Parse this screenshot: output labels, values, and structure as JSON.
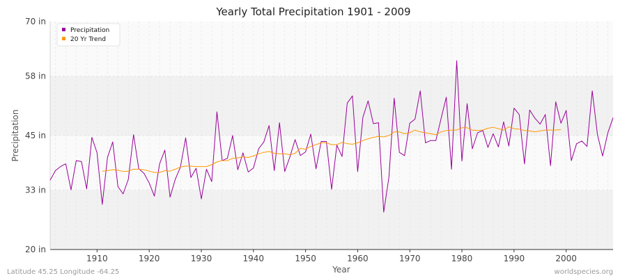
{
  "chart_data": {
    "type": "line",
    "title": "Yearly Total Precipitation 1901 - 2009",
    "xlabel": "Year",
    "ylabel": "Precipitation",
    "xlim": [
      1901,
      2009
    ],
    "ylim": [
      20,
      70
    ],
    "y_ticks": [
      {
        "value": 20,
        "label": "20 in"
      },
      {
        "value": 33,
        "label": "33 in"
      },
      {
        "value": 45,
        "label": "45 in"
      },
      {
        "value": 58,
        "label": "58 in"
      },
      {
        "value": 70,
        "label": "70 in"
      }
    ],
    "x_ticks": [
      1910,
      1920,
      1930,
      1940,
      1950,
      1960,
      1970,
      1980,
      1990,
      2000
    ],
    "legend": {
      "position": "top-left"
    },
    "series": [
      {
        "name": "Precipitation",
        "color": "#990099",
        "x": [
          1901,
          1902,
          1903,
          1904,
          1905,
          1906,
          1907,
          1908,
          1909,
          1910,
          1911,
          1912,
          1913,
          1914,
          1915,
          1916,
          1917,
          1918,
          1919,
          1920,
          1921,
          1922,
          1923,
          1924,
          1925,
          1926,
          1927,
          1928,
          1929,
          1930,
          1931,
          1932,
          1933,
          1934,
          1935,
          1936,
          1937,
          1938,
          1939,
          1940,
          1941,
          1942,
          1943,
          1944,
          1945,
          1946,
          1947,
          1948,
          1949,
          1950,
          1951,
          1952,
          1953,
          1954,
          1955,
          1956,
          1957,
          1958,
          1959,
          1960,
          1961,
          1962,
          1963,
          1964,
          1965,
          1966,
          1967,
          1968,
          1969,
          1970,
          1971,
          1972,
          1973,
          1974,
          1975,
          1976,
          1977,
          1978,
          1979,
          1980,
          1981,
          1982,
          1983,
          1984,
          1985,
          1986,
          1987,
          1988,
          1989,
          1990,
          1991,
          1992,
          1993,
          1994,
          1995,
          1996,
          1997,
          1998,
          1999,
          2000,
          2001,
          2002,
          2003,
          2004,
          2005,
          2006,
          2007,
          2008,
          2009
        ],
        "values": [
          35.2,
          37.3,
          38.2,
          38.8,
          33.1,
          39.5,
          39.3,
          33.3,
          44.6,
          41.2,
          29.9,
          40.2,
          43.6,
          33.8,
          32.2,
          35.4,
          45.2,
          37.7,
          36.7,
          34.6,
          31.7,
          38.8,
          41.8,
          31.5,
          35.4,
          38.1,
          44.5,
          35.8,
          37.8,
          31.1,
          37.6,
          34.9,
          50.2,
          39.5,
          40.0,
          45.0,
          37.5,
          41.2,
          37.0,
          37.9,
          42.1,
          43.6,
          47.2,
          37.3,
          47.8,
          37.1,
          40.3,
          44.1,
          40.6,
          41.4,
          45.3,
          37.7,
          43.7,
          43.7,
          33.2,
          42.9,
          40.4,
          52.1,
          53.7,
          37.1,
          49.0,
          52.6,
          47.6,
          47.8,
          28.2,
          35.9,
          53.2,
          41.3,
          40.6,
          47.7,
          48.6,
          54.8,
          43.4,
          43.9,
          43.9,
          48.7,
          53.4,
          37.6,
          61.4,
          39.4,
          52.0,
          42.1,
          45.6,
          46.1,
          42.4,
          45.4,
          42.5,
          48.0,
          42.7,
          51.0,
          49.6,
          38.8,
          50.6,
          48.8,
          47.5,
          49.6,
          38.4,
          52.4,
          47.7,
          50.5,
          39.5,
          43.2,
          43.8,
          42.6,
          54.8,
          45.2,
          40.5,
          45.6,
          48.9
        ]
      },
      {
        "name": "20 Yr Trend",
        "color": "#ff9900",
        "x": [
          1911,
          1912,
          1913,
          1914,
          1915,
          1916,
          1917,
          1918,
          1919,
          1920,
          1921,
          1922,
          1923,
          1924,
          1925,
          1926,
          1927,
          1928,
          1929,
          1930,
          1931,
          1932,
          1933,
          1934,
          1935,
          1936,
          1937,
          1938,
          1939,
          1940,
          1941,
          1942,
          1943,
          1944,
          1945,
          1946,
          1947,
          1948,
          1949,
          1950,
          1951,
          1952,
          1953,
          1954,
          1955,
          1956,
          1957,
          1958,
          1959,
          1960,
          1961,
          1962,
          1963,
          1964,
          1965,
          1966,
          1967,
          1968,
          1969,
          1970,
          1971,
          1972,
          1973,
          1974,
          1975,
          1976,
          1977,
          1978,
          1979,
          1980,
          1981,
          1982,
          1983,
          1984,
          1985,
          1986,
          1987,
          1988,
          1989,
          1990,
          1991,
          1992,
          1993,
          1994,
          1995,
          1996,
          1997,
          1998,
          1999
        ],
        "values": [
          37.2,
          37.3,
          37.5,
          37.4,
          37.1,
          37.2,
          37.6,
          37.6,
          37.5,
          37.2,
          36.9,
          36.9,
          37.3,
          37.2,
          37.6,
          38.1,
          38.3,
          38.3,
          38.2,
          38.2,
          38.2,
          38.6,
          39.2,
          39.5,
          39.5,
          40.0,
          40.1,
          40.3,
          40.2,
          40.5,
          41.0,
          41.3,
          41.5,
          41.1,
          41.0,
          41.0,
          40.8,
          41.1,
          42.2,
          42.0,
          42.6,
          43.0,
          43.4,
          43.4,
          43.0,
          43.0,
          43.5,
          43.2,
          43.1,
          43.4,
          43.9,
          44.3,
          44.6,
          44.8,
          44.7,
          45.0,
          45.8,
          45.8,
          45.4,
          45.6,
          46.2,
          45.8,
          45.6,
          45.4,
          45.2,
          45.8,
          46.1,
          46.2,
          46.2,
          46.7,
          46.7,
          46.2,
          46.1,
          46.2,
          46.6,
          46.8,
          46.5,
          46.2,
          46.9,
          46.5,
          46.4,
          46.1,
          46.0,
          45.8,
          46.0,
          46.2,
          46.2,
          46.2,
          46.3
        ]
      }
    ]
  },
  "footer": {
    "left": "Latitude 45.25 Longitude -64.25",
    "right": "worldspecies.org"
  }
}
